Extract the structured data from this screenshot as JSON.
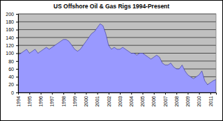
{
  "chart_data": {
    "type": "area",
    "title": "US Offshore Oil & Gas Rigs 1994-Present",
    "x": [
      1994,
      1994.25,
      1994.5,
      1994.75,
      1995,
      1995.25,
      1995.5,
      1995.75,
      1996,
      1996.25,
      1996.5,
      1996.75,
      1997,
      1997.25,
      1997.5,
      1997.75,
      1998,
      1998.25,
      1998.5,
      1998.75,
      1999,
      1999.25,
      1999.5,
      1999.75,
      2000,
      2000.25,
      2000.5,
      2000.75,
      2001,
      2001.25,
      2001.5,
      2001.75,
      2002,
      2002.25,
      2002.5,
      2002.75,
      2003,
      2003.25,
      2003.5,
      2003.75,
      2004,
      2004.25,
      2004.5,
      2004.75,
      2005,
      2005.25,
      2005.5,
      2005.75,
      2006,
      2006.25,
      2006.5,
      2006.75,
      2007,
      2007.25,
      2007.5,
      2007.75,
      2008,
      2008.25,
      2008.5,
      2008.75,
      2009,
      2009.25,
      2009.5,
      2009.75,
      2010,
      2010.25,
      2010.5,
      2010.75,
      2011,
      2011.25,
      2011.5
    ],
    "values": [
      95,
      100,
      105,
      110,
      100,
      105,
      110,
      100,
      105,
      110,
      115,
      110,
      115,
      120,
      125,
      130,
      135,
      135,
      130,
      120,
      110,
      105,
      110,
      120,
      130,
      140,
      150,
      155,
      165,
      175,
      170,
      150,
      120,
      110,
      115,
      110,
      110,
      115,
      110,
      105,
      100,
      100,
      95,
      100,
      100,
      95,
      90,
      85,
      90,
      95,
      90,
      75,
      70,
      70,
      75,
      65,
      60,
      60,
      70,
      55,
      45,
      40,
      35,
      40,
      45,
      55,
      30,
      20,
      25,
      30,
      33
    ],
    "color": "#9999ff",
    "xlim": [
      1994,
      2011.5
    ],
    "xticks": [
      1994,
      1995,
      1996,
      1997,
      1998,
      1999,
      2000,
      2001,
      2002,
      2003,
      2004,
      2005,
      2006,
      2007,
      2008,
      2009,
      2010,
      2011
    ],
    "ylim": [
      0,
      200
    ],
    "yticks": [
      0,
      20,
      40,
      60,
      80,
      100,
      120,
      140,
      160,
      180,
      200
    ],
    "grid": true
  }
}
